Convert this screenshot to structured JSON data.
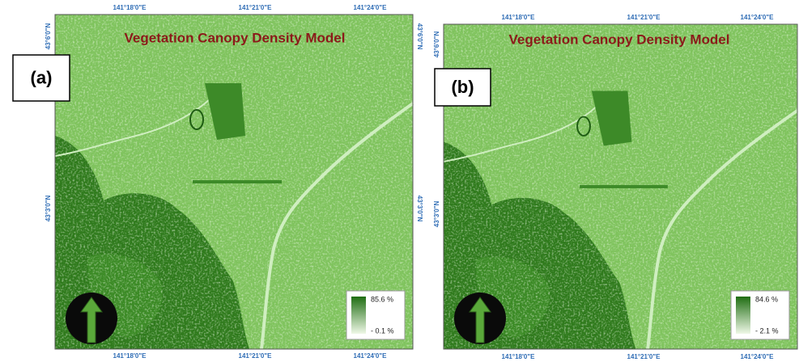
{
  "panels": [
    {
      "label": "(a)",
      "title": "Vegetation Canopy Density Model",
      "top_ticks": [
        "141°18'0\"E",
        "141°21'0\"E",
        "141°24'0\"E"
      ],
      "bottom_ticks": [
        "141°18'0\"E",
        "141°21'0\"E",
        "141°24'0\"E"
      ],
      "left_ticks": [
        "43°6'0\"N",
        "43°3'0\"N"
      ],
      "right_ticks": [
        "43°6'0\"N",
        "43°3'0\"N"
      ],
      "legend": {
        "max": "85.6 %",
        "min": "- 0.1 %"
      }
    },
    {
      "label": "(b)",
      "title": "Vegetation Canopy Density Model",
      "top_ticks": [
        "141°18'0\"E",
        "141°21'0\"E",
        "141°24'0\"E"
      ],
      "bottom_ticks": [
        "141°18'0\"E",
        "141°21'0\"E",
        "141°24'0\"E"
      ],
      "left_ticks": [
        "43°6'0\"N",
        "43°3'0\"N"
      ],
      "legend": {
        "max": "84.6 %",
        "min": "- 2.1 %"
      }
    }
  ]
}
